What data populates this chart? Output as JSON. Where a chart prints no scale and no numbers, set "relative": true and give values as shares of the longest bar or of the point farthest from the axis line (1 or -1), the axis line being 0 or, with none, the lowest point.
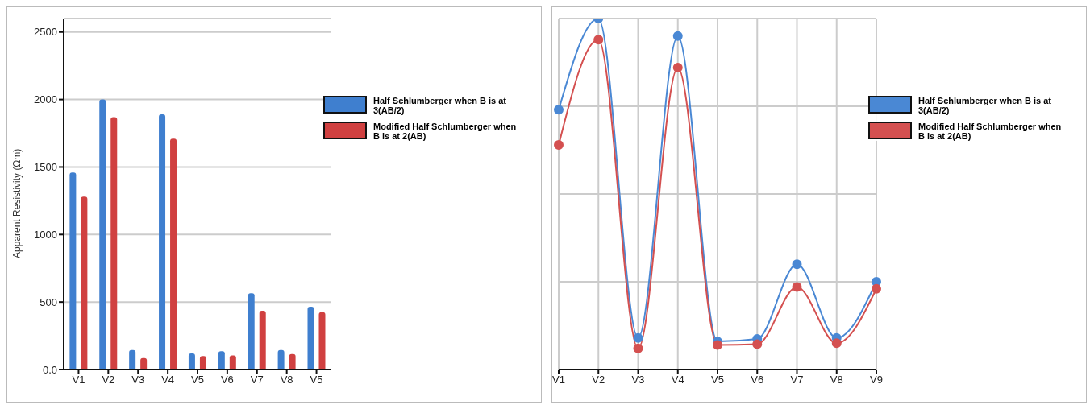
{
  "chart_data": [
    {
      "type": "bar",
      "ylabel": "Apparent Resistivity (Ωm)",
      "categories": [
        "V1",
        "V2",
        "V3",
        "V4",
        "V5",
        "V6",
        "V7",
        "V8",
        "V5"
      ],
      "series": [
        {
          "name": "Half Schlumberger when B is at 3(AB/2)",
          "color": "#3f7fcf",
          "values": [
            1460,
            2000,
            145,
            1890,
            120,
            135,
            565,
            145,
            465
          ]
        },
        {
          "name": "Modified Half Schlumberger when B is at 2(AB)",
          "color": "#d04040",
          "values": [
            1280,
            1870,
            85,
            1710,
            100,
            105,
            435,
            115,
            425
          ]
        }
      ],
      "ylim": [
        0,
        2600
      ],
      "yticks": [
        {
          "value": 0,
          "label": "0.0"
        },
        500,
        1000,
        1500,
        2000,
        2500
      ],
      "grid": "y",
      "legend": "top right"
    },
    {
      "type": "line",
      "relative": true,
      "categories": [
        "V1",
        "V2",
        "V3",
        "V4",
        "V5",
        "V6",
        "V7",
        "V8",
        "V9"
      ],
      "series": [
        {
          "name": "Half Schlumberger when B is at 3(AB/2)",
          "color": "#4a88d4",
          "values": [
            0.74,
            1,
            0.09,
            0.95,
            0.08,
            0.087,
            0.3,
            0.09,
            0.25
          ]
        },
        {
          "name": "Modified Half Schlumberger when B is at 2(AB)",
          "color": "#d45050",
          "values": [
            0.64,
            0.94,
            0.06,
            0.86,
            0.07,
            0.072,
            0.235,
            0.075,
            0.23
          ]
        }
      ],
      "grid": true,
      "legend": "top right",
      "marker": "circle"
    }
  ]
}
